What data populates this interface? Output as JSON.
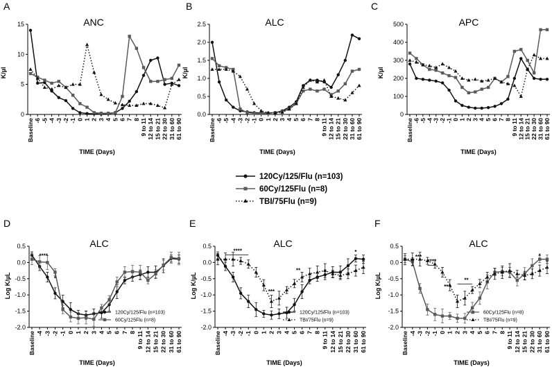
{
  "colors": {
    "series": [
      "#111111",
      "#5a5a5a",
      "#111111"
    ],
    "axis": "#000000"
  },
  "shared_legend": [
    {
      "label": "120Cy/125/Flu (n=103)",
      "style": "solid",
      "marker": "dot"
    },
    {
      "label": "60Cy/125Flu (n=8)",
      "style": "solid-gray",
      "marker": "square"
    },
    {
      "label": "TBI/75Flu (n=9)",
      "style": "dotted",
      "marker": "triangle"
    }
  ],
  "chart_data": [
    {
      "panel": "A",
      "type": "line",
      "title": "ANC",
      "ylabel": "K/µl",
      "xlabel": "TIME (Days)",
      "ylim": [
        0,
        15
      ],
      "yticks": [
        "0",
        "5",
        "10",
        "15"
      ],
      "categories": [
        "Baseline",
        "-6",
        "-5",
        "-4",
        "-3",
        "-2",
        "-1",
        "0",
        "1",
        "2",
        "3",
        "4",
        "5",
        "6",
        "7",
        "8",
        "9 to 11",
        "12 to 14",
        "15 to 21",
        "22 to 30",
        "31 to 60",
        "61 to 90"
      ],
      "series": [
        {
          "name": "120Cy/125/Flu (n=103)",
          "values": [
            14,
            5.2,
            5.3,
            3.9,
            2.8,
            2.3,
            1.0,
            0.3,
            0.15,
            0.1,
            0.05,
            0.1,
            0.3,
            1.0,
            2.2,
            3.8,
            6.5,
            9.0,
            9.4,
            5.0,
            5.2,
            4.8
          ]
        },
        {
          "name": "60Cy/125Flu (n=8)",
          "values": [
            6.8,
            6.2,
            5.7,
            5.2,
            5.5,
            4.5,
            3.2,
            1.8,
            1.2,
            0.3,
            0.2,
            0.2,
            0.3,
            3.0,
            13.0,
            11.0,
            7.8,
            5.5,
            5.5,
            5.8,
            6.0,
            8.2
          ]
        },
        {
          "name": "TBI/75Flu (n=9)",
          "values": [
            7.5,
            6.0,
            4.5,
            4.2,
            4.8,
            4.5,
            5.0,
            5.0,
            11.6,
            7.0,
            3.3,
            2.5,
            1.9,
            1.6,
            1.5,
            1.5,
            1.8,
            1.8,
            1.5,
            1.1,
            5.0,
            5.8
          ]
        }
      ]
    },
    {
      "panel": "B",
      "type": "line",
      "title": "ALC",
      "ylabel": "K/µl",
      "xlabel": "TIME (Days)",
      "ylim": [
        0,
        2.5
      ],
      "yticks": [
        "0.0",
        "0.5",
        "1.0",
        "1.5",
        "2.0",
        "2.5"
      ],
      "categories": [
        "Baseline",
        "-6",
        "-5",
        "-4",
        "-3",
        "-2",
        "-1",
        "0",
        "1",
        "2",
        "3",
        "4",
        "5",
        "6",
        "7",
        "8",
        "9 to 11",
        "12 to 14",
        "15 to 21",
        "22 to 30",
        "31 to 60",
        "61 to 90"
      ],
      "series": [
        {
          "name": "120Cy/125/Flu (n=103)",
          "values": [
            2.0,
            0.9,
            0.4,
            0.2,
            0.1,
            0.07,
            0.05,
            0.04,
            0.04,
            0.05,
            0.1,
            0.2,
            0.35,
            0.8,
            0.95,
            0.95,
            0.9,
            0.75,
            1.1,
            1.5,
            2.2,
            2.1
          ]
        },
        {
          "name": "60Cy/125Flu (n=8)",
          "values": [
            1.55,
            1.35,
            1.3,
            1.25,
            0.15,
            0.05,
            0.03,
            0.03,
            0.03,
            0.05,
            0.08,
            0.15,
            0.3,
            0.65,
            0.7,
            0.65,
            0.7,
            0.55,
            0.65,
            0.85,
            1.2,
            1.25
          ]
        },
        {
          "name": "TBI/75Flu (n=9)",
          "values": [
            1.25,
            1.25,
            1.25,
            1.2,
            1.05,
            0.7,
            0.3,
            0.1,
            0.05,
            0.04,
            0.06,
            0.15,
            0.3,
            0.75,
            0.95,
            0.9,
            0.95,
            0.5,
            0.45,
            0.4,
            0.6,
            0.8
          ]
        }
      ]
    },
    {
      "panel": "C",
      "type": "line",
      "title": "APC",
      "ylabel": "K/µl",
      "xlabel": "TIME (Days)",
      "ylim": [
        0,
        500
      ],
      "yticks": [
        "0",
        "100",
        "200",
        "300",
        "400",
        "500"
      ],
      "categories": [
        "Baseline",
        "-6",
        "-5",
        "-4",
        "-3",
        "-2",
        "-1",
        "0",
        "1",
        "2",
        "3",
        "4",
        "5",
        "6",
        "7",
        "8",
        "9 to 11",
        "12 to 14",
        "15 to 21",
        "22 to 30",
        "31 to 60",
        "61 to 90"
      ],
      "series": [
        {
          "name": "120Cy/125/Flu (n=103)",
          "values": [
            280,
            200,
            195,
            190,
            185,
            175,
            135,
            75,
            50,
            40,
            35,
            35,
            38,
            45,
            60,
            85,
            200,
            310,
            250,
            200,
            195,
            195
          ]
        },
        {
          "name": "60Cy/125Flu (n=8)",
          "values": [
            340,
            310,
            275,
            250,
            245,
            230,
            215,
            205,
            150,
            120,
            125,
            140,
            150,
            200,
            180,
            210,
            350,
            360,
            300,
            230,
            470,
            470
          ]
        },
        {
          "name": "TBI/75Flu (n=9)",
          "values": [
            300,
            290,
            275,
            270,
            260,
            280,
            260,
            240,
            200,
            190,
            195,
            185,
            190,
            200,
            180,
            170,
            160,
            100,
            250,
            330,
            310,
            310
          ]
        }
      ]
    },
    {
      "panel": "D",
      "type": "line",
      "title": "ALC",
      "ylabel": "Log K/µL",
      "xlabel": "TIME (Days)",
      "ylim": [
        -2.0,
        0.5
      ],
      "yticks": [
        "0.5",
        "0.0",
        "-0.5",
        "-1.0",
        "-1.5",
        "-2.0"
      ],
      "categories": [
        "Baseline",
        "-4",
        "-3",
        "-2",
        "-1",
        "0",
        "1",
        "2",
        "3",
        "4",
        "5",
        "6",
        "7",
        "8",
        "9 to 11",
        "12 to 14",
        "15 to 21",
        "22 to 30",
        "31 to 60",
        "61 to 90"
      ],
      "legend": [
        "120Cy/125/Flu (n=103)",
        "60Cy/125Flu (n=8)"
      ],
      "annotations": [
        "****",
        "*"
      ],
      "series": [
        {
          "name": "120Cy/125/Flu (n=103)",
          "values": [
            0.22,
            -0.12,
            -0.45,
            -0.95,
            -1.2,
            -1.45,
            -1.58,
            -1.62,
            -1.58,
            -1.55,
            -1.3,
            -0.9,
            -0.55,
            -0.45,
            -0.38,
            -0.3,
            -0.3,
            -0.1,
            0.12,
            0.1
          ]
        },
        {
          "name": "60Cy/125Flu (n=8)",
          "values": [
            0.1,
            0.02,
            0.0,
            -0.3,
            -1.45,
            -1.68,
            -1.72,
            -1.7,
            -1.75,
            -1.4,
            -1.15,
            -0.6,
            -0.3,
            -0.28,
            -0.3,
            -0.55,
            -0.35,
            -0.08,
            0.15,
            0.12
          ]
        }
      ]
    },
    {
      "panel": "E",
      "type": "line",
      "title": "ALC",
      "ylabel": "Log K/µL",
      "xlabel": "TIME (Days)",
      "ylim": [
        -2.0,
        0.5
      ],
      "yticks": [
        "0.5",
        "0.0",
        "-0.5",
        "-1.0",
        "-1.5",
        "-2.0"
      ],
      "categories": [
        "Baseline",
        "-4",
        "-3",
        "-2",
        "-1",
        "0",
        "1",
        "2",
        "3",
        "4",
        "5",
        "6",
        "7",
        "8",
        "9 to 11",
        "12 to 14",
        "15 to 21",
        "22 to 30",
        "31 to 60",
        "61 to 90"
      ],
      "legend": [
        "120Cy/125/Flu (n=103)",
        "TBI/75Flu (n=9)"
      ],
      "annotations": [
        "****",
        "***",
        "**",
        "*"
      ],
      "series": [
        {
          "name": "120Cy/125/Flu (n=103)",
          "values": [
            0.22,
            -0.12,
            -0.45,
            -0.95,
            -1.2,
            -1.45,
            -1.58,
            -1.62,
            -1.58,
            -1.55,
            -1.3,
            -0.9,
            -0.55,
            -0.45,
            -0.38,
            -0.3,
            -0.3,
            -0.1,
            0.12,
            0.1
          ]
        },
        {
          "name": "TBI/75Flu (n=9)",
          "values": [
            0.1,
            0.1,
            0.1,
            0.05,
            -0.05,
            -0.3,
            -0.7,
            -1.2,
            -1.1,
            -0.85,
            -0.65,
            -0.45,
            -0.35,
            -0.3,
            -0.25,
            -0.35,
            -0.4,
            -0.35,
            -0.25,
            -0.15
          ]
        }
      ]
    },
    {
      "panel": "F",
      "type": "line",
      "title": "ALC",
      "ylabel": "Log K/µL",
      "xlabel": "TIME (Days)",
      "ylim": [
        -2.0,
        0.5
      ],
      "yticks": [
        "0.5",
        "0.0",
        "-0.5",
        "-1.0",
        "-1.5",
        "-2.0"
      ],
      "categories": [
        "Baseline",
        "-4",
        "-3",
        "-2",
        "-1",
        "0",
        "1",
        "2",
        "3",
        "4",
        "5",
        "6",
        "7",
        "8",
        "9 to 11",
        "12 to 14",
        "15 to 21",
        "22 to 30",
        "31 to 60",
        "61 to 90"
      ],
      "legend": [
        "60Cy/125Flu (n=8)",
        "TBI/75Flu (n=9)"
      ],
      "annotations": [
        "***",
        "****",
        "**",
        "**",
        "*"
      ],
      "series": [
        {
          "name": "60Cy/125Flu (n=8)",
          "values": [
            0.1,
            0.02,
            -0.8,
            -1.45,
            -1.6,
            -1.65,
            -1.65,
            -1.72,
            -1.72,
            -1.4,
            -1.1,
            -0.6,
            -0.3,
            -0.28,
            -0.3,
            -0.55,
            -0.35,
            -0.1,
            0.1,
            0.1
          ]
        },
        {
          "name": "TBI/75Flu (n=9)",
          "values": [
            0.1,
            0.1,
            0.1,
            0.05,
            -0.05,
            -0.3,
            -0.7,
            -1.2,
            -1.1,
            -0.85,
            -0.65,
            -0.45,
            -0.35,
            -0.3,
            -0.25,
            -0.35,
            -0.4,
            -0.35,
            -0.25,
            -0.15
          ]
        }
      ]
    }
  ]
}
